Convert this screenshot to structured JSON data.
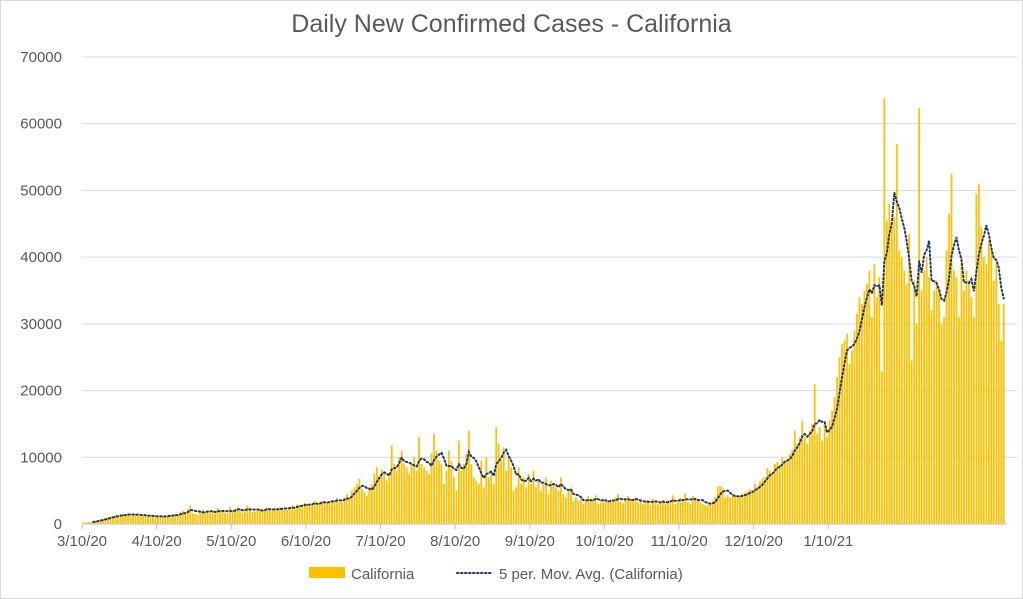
{
  "chart_data": {
    "type": "bar",
    "title": "Daily New Confirmed Cases - California",
    "xlabel": "",
    "ylabel": "",
    "ylim": [
      0,
      70000
    ],
    "yticks": [
      0,
      10000,
      20000,
      30000,
      40000,
      50000,
      60000,
      70000
    ],
    "x_start": "3/10/20",
    "x_tick_labels": [
      "3/10/20",
      "4/10/20",
      "5/10/20",
      "6/10/20",
      "7/10/20",
      "8/10/20",
      "9/10/20",
      "10/10/20",
      "11/10/20",
      "12/10/20",
      "1/10/21"
    ],
    "grid": true,
    "legend_position": "bottom",
    "colors": {
      "bar": "#FFC000",
      "moving_avg": "#1F3864",
      "grid": "#d9d9d9",
      "text": "#595959"
    },
    "series": [
      {
        "name": "California",
        "type": "bar",
        "values": [
          200,
          250,
          300,
          350,
          400,
          500,
          600,
          700,
          800,
          900,
          1000,
          1100,
          1200,
          1300,
          1200,
          1400,
          1500,
          1300,
          1600,
          1400,
          1300,
          1500,
          1200,
          1400,
          1300,
          1200,
          1100,
          1300,
          1200,
          1100,
          1000,
          1200,
          1100,
          1300,
          1200,
          1400,
          1300,
          1500,
          1200,
          1800,
          2000,
          1700,
          2200,
          2800,
          1600,
          1500,
          1400,
          2000,
          2200,
          1800,
          1900,
          1700,
          2000,
          1500,
          2400,
          2100,
          1800,
          1700,
          1600,
          2600,
          1900,
          2200,
          2500,
          2000,
          1700,
          2000,
          2800,
          2400,
          1800,
          1900,
          2100,
          2300,
          2000,
          2200,
          2500,
          2100,
          2000,
          2300,
          2200,
          2500,
          2400,
          2300,
          2100,
          2600,
          2800,
          2500,
          2900,
          2700,
          2800,
          3200,
          3000,
          2800,
          3000,
          3500,
          2900,
          3100,
          3500,
          3300,
          3200,
          3400,
          3600,
          3500,
          3900,
          3300,
          3400,
          4000,
          4500,
          3800,
          5000,
          5500,
          6000,
          6800,
          5200,
          4800,
          4200,
          5500,
          6000,
          7500,
          8500,
          7000,
          8200,
          7500,
          6500,
          7000,
          11800,
          9000,
          8000,
          10000,
          11000,
          9000,
          8500,
          7500,
          9000,
          10000,
          8000,
          13000,
          9000,
          8500,
          8000,
          7500,
          10500,
          13500,
          11000,
          9500,
          9000,
          6000,
          8000,
          11000,
          9500,
          7000,
          5000,
          12500,
          8000,
          9000,
          10500,
          14000,
          9000,
          7000,
          6500,
          6000,
          9500,
          5500,
          10000,
          7000,
          7500,
          6000,
          14500,
          12000,
          9500,
          11500,
          8000,
          10000,
          8500,
          5000,
          5500,
          8500,
          6000,
          7000,
          5500,
          7500,
          6000,
          8000,
          5500,
          6500,
          5000,
          6000,
          7000,
          4500,
          6500,
          6000,
          5500,
          5000,
          7000,
          4500,
          4000,
          5000,
          5500,
          3500,
          4000,
          3500,
          3800,
          3000,
          3400,
          4200,
          3500,
          3600,
          4300,
          3000,
          3200,
          3800,
          3500,
          3300,
          3600,
          3400,
          4000,
          4500,
          3300,
          3100,
          3600,
          4200,
          3700,
          3400,
          3900,
          3200,
          3500,
          3000,
          3400,
          3600,
          2900,
          3800,
          3300,
          3000,
          3200,
          3600,
          3100,
          3500,
          3400,
          4300,
          3000,
          3300,
          3900,
          3500,
          4600,
          3300,
          3000,
          4200,
          3600,
          3800,
          3300,
          3000,
          2800,
          2900,
          3200,
          3500,
          4000,
          5600,
          5700,
          5500,
          4000,
          4300,
          3900,
          4200,
          4400,
          4000,
          4100,
          4500,
          4700,
          4900,
          5100,
          4700,
          6000,
          5600,
          6400,
          6800,
          7000,
          8400,
          8000,
          7500,
          9000,
          9300,
          8900,
          10000,
          9500,
          9800,
          10500,
          11200,
          14000,
          12000,
          13000,
          15500,
          13000,
          12000,
          14000,
          15000,
          21000,
          13500,
          14500,
          12500,
          15000,
          13000,
          15500,
          17000,
          19000,
          22000,
          25000,
          27000,
          27500,
          28500,
          24000,
          26000,
          29000,
          31500,
          34000,
          33000,
          35000,
          36000,
          38000,
          31000,
          39000,
          34000,
          37000,
          22900,
          63800,
          45500,
          48000,
          45000,
          46000,
          57000,
          41000,
          40000,
          38000,
          36000,
          43500,
          24500,
          36500,
          30000,
          62300,
          35000,
          38000,
          40000,
          37000,
          32000,
          35000,
          36500,
          35000,
          30000,
          31000,
          41000,
          46500,
          52500,
          38000,
          37000,
          31000,
          40000,
          35000,
          38000,
          36500,
          34000,
          31000,
          49500,
          51000,
          44500,
          40000,
          39000,
          42500,
          41000,
          36500,
          39000,
          33000,
          27500,
          33000
        ]
      },
      {
        "name": "5 per. Mov. Avg. (California)",
        "type": "line",
        "style": "dotted",
        "window": 5
      }
    ]
  }
}
